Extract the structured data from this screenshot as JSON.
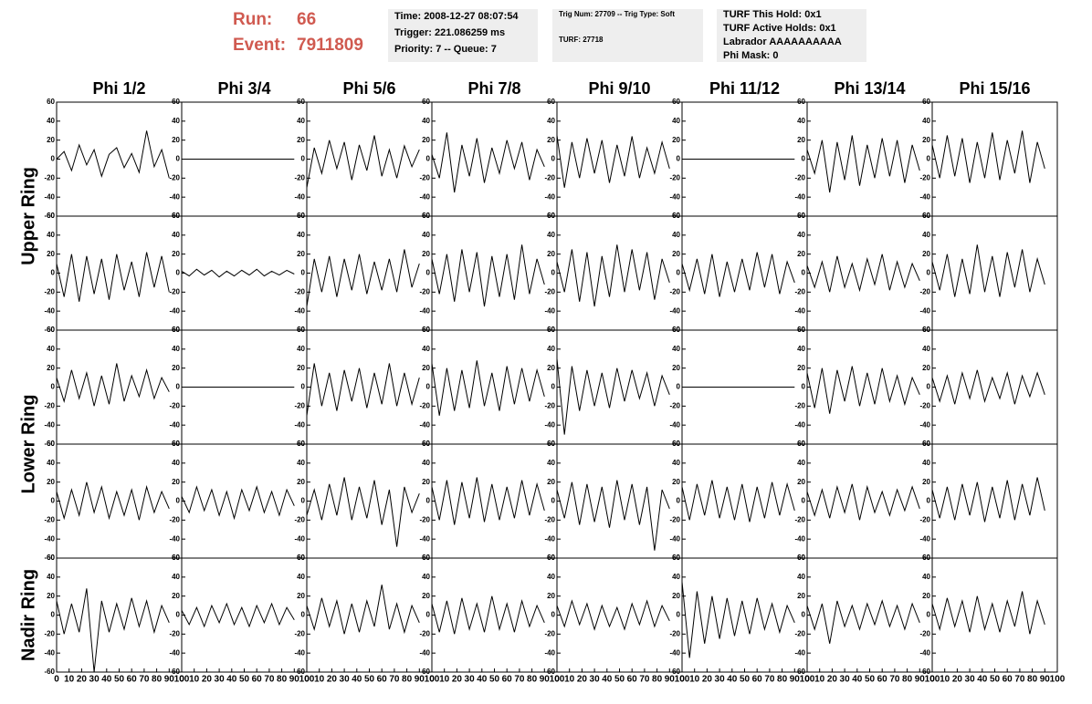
{
  "header": {
    "run_label": "Run:",
    "run": 66,
    "event_label": "Event:",
    "event": 7911809,
    "box1": [
      "Time: 2008-12-27 08:07:54",
      "Trigger: 221.086259 ms",
      "Priority: 7 -- Queue: 7"
    ],
    "box2": [
      "Trig Num: 27709 -- Trig Type: Soft",
      "TURF: 27718"
    ],
    "box3": [
      "TURF This Hold: 0x1",
      "TURF Active Holds: 0x1",
      "Labrador AAAAAAAAAA",
      "Phi Mask: 0"
    ]
  },
  "chart_data": {
    "type": "line",
    "color": "#000000",
    "columns": [
      "Phi 1/2",
      "Phi 3/4",
      "Phi 5/6",
      "Phi 7/8",
      "Phi 9/10",
      "Phi 11/12",
      "Phi 13/14",
      "Phi 15/16"
    ],
    "ring_labels": [
      "Upper Ring",
      "Lower Ring",
      "Nadir Ring"
    ],
    "xlim": [
      0,
      100
    ],
    "ylim": [
      -60,
      60
    ],
    "xticks": [
      0,
      10,
      20,
      30,
      40,
      50,
      60,
      70,
      80,
      90,
      100
    ],
    "yticks": [
      60,
      40,
      20,
      0,
      -20,
      -40,
      -60
    ],
    "x": [
      0,
      6,
      12,
      18,
      24,
      30,
      36,
      42,
      48,
      54,
      60,
      66,
      72,
      78,
      84,
      90
    ],
    "rows": [
      [
        [
          0,
          8,
          -12,
          15,
          -6,
          10,
          -18,
          5,
          12,
          -9,
          6,
          -14,
          30,
          -8,
          10,
          -20
        ],
        [
          0,
          0,
          0,
          0,
          0,
          0,
          0,
          0,
          0,
          0,
          0,
          0,
          0,
          0,
          0,
          0
        ],
        [
          -30,
          12,
          -15,
          20,
          -10,
          18,
          -22,
          15,
          -12,
          25,
          -18,
          10,
          -20,
          14,
          -8,
          10
        ],
        [
          5,
          -20,
          28,
          -35,
          15,
          -18,
          22,
          -25,
          12,
          -15,
          20,
          -10,
          18,
          -22,
          10,
          -8
        ],
        [
          25,
          -30,
          18,
          -20,
          22,
          -15,
          20,
          -25,
          15,
          -18,
          24,
          -20,
          12,
          -15,
          18,
          -10
        ],
        [
          0,
          0,
          0,
          0,
          0,
          0,
          0,
          0,
          0,
          0,
          0,
          0,
          0,
          0,
          0,
          0
        ],
        [
          10,
          -15,
          20,
          -35,
          18,
          -22,
          25,
          -28,
          15,
          -20,
          22,
          -18,
          20,
          -25,
          15,
          -12
        ],
        [
          15,
          -20,
          25,
          -18,
          22,
          -25,
          18,
          -20,
          28,
          -22,
          20,
          -15,
          30,
          -25,
          18,
          -10
        ]
      ],
      [
        [
          10,
          -25,
          20,
          -30,
          18,
          -22,
          15,
          -28,
          20,
          -18,
          12,
          -25,
          22,
          -15,
          18,
          -20
        ],
        [
          2,
          -3,
          4,
          -2,
          3,
          -4,
          2,
          -3,
          3,
          -2,
          4,
          -3,
          2,
          -2,
          3,
          -1
        ],
        [
          -35,
          15,
          -20,
          18,
          -25,
          15,
          -18,
          20,
          -22,
          12,
          -18,
          15,
          -20,
          25,
          -15,
          10
        ],
        [
          15,
          -22,
          20,
          -30,
          25,
          -20,
          22,
          -35,
          18,
          -25,
          20,
          -28,
          30,
          -22,
          15,
          -12
        ],
        [
          12,
          -20,
          25,
          -30,
          22,
          -35,
          18,
          -25,
          30,
          -20,
          25,
          -18,
          22,
          -28,
          15,
          -10
        ],
        [
          10,
          -18,
          15,
          -22,
          20,
          -25,
          12,
          -20,
          15,
          -18,
          22,
          -15,
          20,
          -22,
          12,
          -10
        ],
        [
          8,
          -15,
          12,
          -20,
          18,
          -15,
          10,
          -18,
          15,
          -12,
          20,
          -18,
          12,
          -15,
          10,
          -8
        ],
        [
          12,
          -18,
          20,
          -25,
          15,
          -22,
          30,
          -20,
          18,
          -25,
          22,
          -15,
          25,
          -20,
          15,
          -12
        ]
      ],
      [
        [
          10,
          -15,
          18,
          -12,
          15,
          -20,
          12,
          -18,
          25,
          -15,
          12,
          -10,
          18,
          -12,
          10,
          -5
        ],
        [
          0,
          0,
          0,
          0,
          0,
          0,
          0,
          0,
          0,
          0,
          0,
          0,
          0,
          0,
          0,
          0
        ],
        [
          -30,
          25,
          -20,
          15,
          -25,
          18,
          -15,
          20,
          -22,
          15,
          -18,
          25,
          -20,
          15,
          -18,
          10
        ],
        [
          25,
          -30,
          20,
          -25,
          18,
          -22,
          28,
          -20,
          15,
          -25,
          22,
          -18,
          20,
          -15,
          18,
          -10
        ],
        [
          30,
          -50,
          22,
          -25,
          18,
          -20,
          15,
          -22,
          20,
          -15,
          18,
          -12,
          15,
          -20,
          12,
          -8
        ],
        [
          0,
          0,
          0,
          0,
          0,
          0,
          0,
          0,
          0,
          0,
          0,
          0,
          0,
          0,
          0,
          0
        ],
        [
          15,
          -22,
          20,
          -28,
          18,
          -15,
          22,
          -20,
          15,
          -18,
          20,
          -15,
          12,
          -18,
          10,
          -8
        ],
        [
          10,
          -15,
          12,
          -18,
          15,
          -12,
          18,
          -15,
          10,
          -12,
          15,
          -18,
          12,
          -10,
          15,
          -8
        ]
      ],
      [
        [
          10,
          -18,
          12,
          -15,
          20,
          -12,
          15,
          -18,
          10,
          -15,
          12,
          -20,
          15,
          -12,
          10,
          -8
        ],
        [
          5,
          -12,
          15,
          -10,
          12,
          -15,
          10,
          -18,
          12,
          -10,
          15,
          -12,
          10,
          -15,
          12,
          -5
        ],
        [
          -15,
          12,
          -20,
          18,
          -15,
          25,
          -20,
          15,
          -18,
          22,
          -25,
          12,
          -48,
          15,
          -12,
          8
        ],
        [
          15,
          -20,
          22,
          -25,
          20,
          -18,
          25,
          -22,
          18,
          -20,
          15,
          -18,
          22,
          -15,
          18,
          -10
        ],
        [
          12,
          -18,
          20,
          -25,
          18,
          -22,
          15,
          -28,
          22,
          -20,
          18,
          -25,
          15,
          -52,
          12,
          -8
        ],
        [
          15,
          -20,
          18,
          -15,
          22,
          -18,
          15,
          -20,
          18,
          -22,
          15,
          -18,
          20,
          -15,
          18,
          -10
        ],
        [
          10,
          -15,
          12,
          -18,
          15,
          -12,
          18,
          -20,
          15,
          -12,
          10,
          -15,
          12,
          -10,
          15,
          -8
        ],
        [
          12,
          -18,
          15,
          -20,
          18,
          -15,
          20,
          -22,
          15,
          -18,
          22,
          -20,
          18,
          -15,
          25,
          -10
        ]
      ],
      [
        [
          15,
          -20,
          12,
          -18,
          28,
          -60,
          15,
          -18,
          12,
          -15,
          18,
          -12,
          15,
          -18,
          10,
          -8
        ],
        [
          5,
          -10,
          8,
          -12,
          10,
          -8,
          12,
          -10,
          8,
          -12,
          10,
          -8,
          12,
          -10,
          8,
          -5
        ],
        [
          10,
          -15,
          18,
          -12,
          15,
          -20,
          12,
          -18,
          15,
          -12,
          32,
          -15,
          12,
          -18,
          10,
          -8
        ],
        [
          12,
          -18,
          15,
          -20,
          18,
          -15,
          12,
          -18,
          20,
          -15,
          12,
          -18,
          15,
          -12,
          10,
          -8
        ],
        [
          10,
          -12,
          15,
          -10,
          12,
          -15,
          10,
          -12,
          8,
          -15,
          12,
          -10,
          15,
          -12,
          10,
          -6
        ],
        [
          35,
          -45,
          25,
          -30,
          20,
          -25,
          18,
          -22,
          15,
          -20,
          18,
          -15,
          12,
          -18,
          10,
          -8
        ],
        [
          10,
          -15,
          12,
          -30,
          15,
          -12,
          10,
          -15,
          12,
          -10,
          15,
          -12,
          10,
          -15,
          12,
          -8
        ],
        [
          12,
          -15,
          18,
          -12,
          15,
          -18,
          20,
          -15,
          12,
          -18,
          15,
          -12,
          25,
          -20,
          15,
          -10
        ]
      ]
    ]
  }
}
